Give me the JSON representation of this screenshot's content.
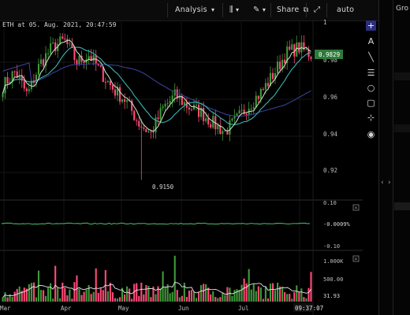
{
  "toolbar": {
    "analysis_label": "Analysis",
    "share_label": "Share",
    "auto_label": "auto",
    "chart_type_icon": "candles-icon",
    "draw_icon": "pencil-icon",
    "share_icon": "external-link-icon",
    "fullscreen_icon": "expand-icon"
  },
  "right_strip": {
    "tab_label": "Gro",
    "collapse_icon": "chevron-left-icon",
    "expand_icon": "chevron-right-icon"
  },
  "tools": [
    "crosshair-icon",
    "text-icon",
    "trend-line-icon",
    "horizontal-lines-icon",
    "circle-icon",
    "lock-icon",
    "node-icon",
    "eye-icon"
  ],
  "chart_data": [
    {
      "type": "candlestick",
      "panel": "price",
      "title": "ETH at 05. Aug. 2021, 20:47:59",
      "y_ticks": [
        "1",
        "0.98",
        "0.96",
        "0.94",
        "0.92"
      ],
      "ylim": [
        0.91,
        1.0
      ],
      "x_ticks": [
        "Mar",
        "Apr",
        "May",
        "Jun",
        "Jul"
      ],
      "last_value_label": "0.9829",
      "min_annotation": "0.9150",
      "approx_close_path": [
        0.966,
        0.974,
        0.961,
        0.978,
        0.987,
        0.991,
        0.979,
        0.983,
        0.973,
        0.964,
        0.958,
        0.946,
        0.94,
        0.954,
        0.961,
        0.955,
        0.952,
        0.946,
        0.941,
        0.948,
        0.956,
        0.963,
        0.973,
        0.984,
        0.987,
        0.983
      ],
      "overlays": [
        "moving-average-fast",
        "moving-average-slow",
        "moving-average-long"
      ]
    },
    {
      "type": "line",
      "panel": "oscillator",
      "y_ticks": [
        "0.10",
        "-0.0009%",
        "-0.10"
      ]
    },
    {
      "type": "bar",
      "panel": "volume",
      "y_ticks": [
        "1.000K",
        "500.00",
        "31.93"
      ],
      "time_label": "09:37:07"
    }
  ],
  "colors": {
    "up": "#3f9a3a",
    "down": "#ff4a78",
    "ma_fast": "#cfe6c9",
    "ma_mid": "#39b6b3",
    "ma_slow": "#3a3f96",
    "tag_bg": "#2f7a3a",
    "active_tool": "#2b2f7d"
  }
}
